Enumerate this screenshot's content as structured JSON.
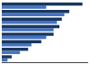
{
  "chart_data": {
    "type": "bar",
    "orientation": "horizontal",
    "categories": [
      null,
      null,
      null,
      null,
      null,
      null,
      null,
      null
    ],
    "series": [
      {
        "color": "#4472c4",
        "values": [
          0.07,
          0.22,
          0.36,
          0.54,
          0.63,
          0.67,
          0.76,
          0.54
        ]
      },
      {
        "color": "#17375e",
        "values": [
          0.12,
          0.32,
          0.48,
          0.63,
          0.7,
          0.73,
          0.82,
          0.98
        ]
      }
    ],
    "xlim": [
      0,
      1.05
    ],
    "grid": false,
    "tick_labels": false
  }
}
